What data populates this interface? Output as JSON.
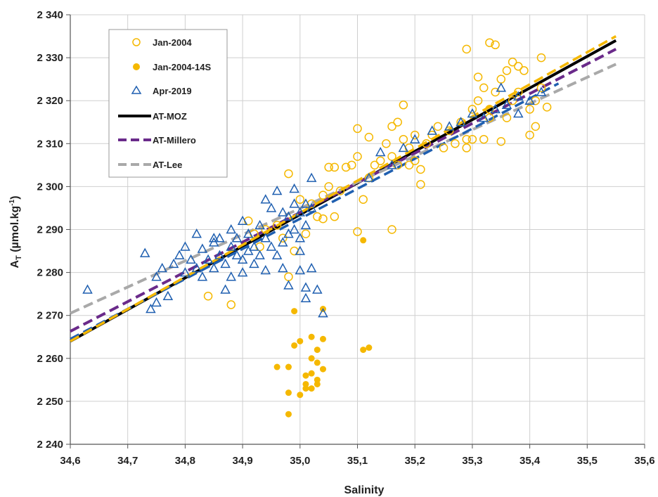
{
  "chart_data": {
    "type": "scatter",
    "xlabel": "Salinity",
    "ylabel": "A",
    "ylabel_sub": "T",
    "ylabel_units": " (µmol.kg",
    "ylabel_sup": "-1",
    "ylabel_close": ")",
    "xlim": [
      34.6,
      35.6
    ],
    "ylim": [
      2240,
      2340
    ],
    "x_ticks": [
      {
        "v": 34.6,
        "label": "34,6"
      },
      {
        "v": 34.7,
        "label": "34,7"
      },
      {
        "v": 34.8,
        "label": "34,8"
      },
      {
        "v": 34.9,
        "label": "34,9"
      },
      {
        "v": 35.0,
        "label": "35,0"
      },
      {
        "v": 35.1,
        "label": "35,1"
      },
      {
        "v": 35.2,
        "label": "35,2"
      },
      {
        "v": 35.3,
        "label": "35,3"
      },
      {
        "v": 35.4,
        "label": "35,4"
      },
      {
        "v": 35.5,
        "label": "35,5"
      },
      {
        "v": 35.6,
        "label": "35,6"
      }
    ],
    "y_ticks": [
      {
        "v": 2240,
        "label": "2 240"
      },
      {
        "v": 2250,
        "label": "2 250"
      },
      {
        "v": 2260,
        "label": "2 260"
      },
      {
        "v": 2270,
        "label": "2 270"
      },
      {
        "v": 2280,
        "label": "2 280"
      },
      {
        "v": 2290,
        "label": "2 290"
      },
      {
        "v": 2300,
        "label": "2 300"
      },
      {
        "v": 2310,
        "label": "2 310"
      },
      {
        "v": 2320,
        "label": "2 320"
      },
      {
        "v": 2330,
        "label": "2 330"
      },
      {
        "v": 2340,
        "label": "2 340"
      }
    ],
    "grid": true,
    "legend_position": "top-left",
    "colors": {
      "jan2004": "#f5b800",
      "jan2004_14s": "#f5b800",
      "apr2019": "#1f5fb0",
      "at_moz": "#000000",
      "at_millero": "#6a2a8a",
      "at_lee": "#a9a9a9",
      "blue_fit": "#1f5fb0",
      "yellow_fit": "#f5b800"
    },
    "series": [
      {
        "name": "Jan-2004",
        "kind": "scatter",
        "marker": "open-circle",
        "points": [
          [
            34.84,
            2274.5
          ],
          [
            34.88,
            2272.5
          ],
          [
            34.91,
            2292
          ],
          [
            34.92,
            2289
          ],
          [
            34.93,
            2286
          ],
          [
            34.94,
            2290
          ],
          [
            34.96,
            2291
          ],
          [
            34.97,
            2288
          ],
          [
            34.98,
            2303
          ],
          [
            34.99,
            2285
          ],
          [
            34.98,
            2279
          ],
          [
            35.0,
            2297
          ],
          [
            35.01,
            2289
          ],
          [
            35.02,
            2296
          ],
          [
            35.03,
            2293
          ],
          [
            35.04,
            2292.5
          ],
          [
            35.04,
            2298
          ],
          [
            35.05,
            2300
          ],
          [
            35.05,
            2304.5
          ],
          [
            35.06,
            2293
          ],
          [
            35.06,
            2304.5
          ],
          [
            35.07,
            2299
          ],
          [
            35.08,
            2304.5
          ],
          [
            35.09,
            2305
          ],
          [
            35.1,
            2307
          ],
          [
            35.1,
            2313.5
          ],
          [
            35.11,
            2297
          ],
          [
            35.12,
            2302
          ],
          [
            35.12,
            2311.5
          ],
          [
            35.13,
            2305
          ],
          [
            35.14,
            2306
          ],
          [
            35.15,
            2310
          ],
          [
            35.16,
            2314
          ],
          [
            35.16,
            2307
          ],
          [
            35.17,
            2305
          ],
          [
            35.17,
            2315
          ],
          [
            35.18,
            2319
          ],
          [
            35.18,
            2311
          ],
          [
            35.19,
            2309
          ],
          [
            35.19,
            2305
          ],
          [
            35.2,
            2312
          ],
          [
            35.2,
            2306
          ],
          [
            35.21,
            2300.5
          ],
          [
            35.21,
            2304
          ],
          [
            35.22,
            2310
          ],
          [
            35.23,
            2312
          ],
          [
            35.24,
            2314
          ],
          [
            35.25,
            2309
          ],
          [
            35.26,
            2313
          ],
          [
            35.27,
            2310
          ],
          [
            35.28,
            2315
          ],
          [
            35.29,
            2309
          ],
          [
            35.29,
            2332
          ],
          [
            35.3,
            2318
          ],
          [
            35.3,
            2311
          ],
          [
            35.31,
            2325.5
          ],
          [
            35.31,
            2320
          ],
          [
            35.32,
            2323
          ],
          [
            35.32,
            2311
          ],
          [
            35.33,
            2333.5
          ],
          [
            35.33,
            2318
          ],
          [
            35.34,
            2333
          ],
          [
            35.34,
            2322
          ],
          [
            35.35,
            2325
          ],
          [
            35.35,
            2310.5
          ],
          [
            35.36,
            2327
          ],
          [
            35.36,
            2316
          ],
          [
            35.37,
            2329
          ],
          [
            35.37,
            2320
          ],
          [
            35.38,
            2328
          ],
          [
            35.38,
            2322
          ],
          [
            35.39,
            2327
          ],
          [
            35.4,
            2312
          ],
          [
            35.4,
            2318
          ],
          [
            35.41,
            2314
          ],
          [
            35.41,
            2320
          ],
          [
            35.42,
            2330
          ],
          [
            35.42,
            2323
          ],
          [
            35.43,
            2318.5
          ],
          [
            35.1,
            2289.5
          ],
          [
            35.16,
            2290
          ],
          [
            35.29,
            2311
          ],
          [
            35.33,
            2316
          ]
        ]
      },
      {
        "name": "Jan-2004-14S",
        "kind": "scatter",
        "marker": "filled-circle",
        "points": [
          [
            34.96,
            2258
          ],
          [
            34.98,
            2258
          ],
          [
            34.98,
            2252
          ],
          [
            34.98,
            2247
          ],
          [
            34.99,
            2263
          ],
          [
            34.99,
            2271
          ],
          [
            35.0,
            2251.5
          ],
          [
            35.0,
            2264
          ],
          [
            35.01,
            2254
          ],
          [
            35.01,
            2256
          ],
          [
            35.01,
            2253
          ],
          [
            35.02,
            2260
          ],
          [
            35.02,
            2265
          ],
          [
            35.02,
            2253
          ],
          [
            35.02,
            2256.5
          ],
          [
            35.03,
            2255
          ],
          [
            35.03,
            2262
          ],
          [
            35.03,
            2259
          ],
          [
            35.03,
            2254
          ],
          [
            35.04,
            2264.5
          ],
          [
            35.04,
            2257.5
          ],
          [
            35.04,
            2271.5
          ],
          [
            35.11,
            2287.5
          ],
          [
            35.11,
            2262
          ],
          [
            35.12,
            2262.5
          ]
        ]
      },
      {
        "name": "Apr-2019",
        "kind": "scatter",
        "marker": "open-triangle",
        "points": [
          [
            34.63,
            2276
          ],
          [
            34.73,
            2284.5
          ],
          [
            34.74,
            2271.5
          ],
          [
            34.75,
            2273
          ],
          [
            34.75,
            2279
          ],
          [
            34.76,
            2281
          ],
          [
            34.77,
            2274.5
          ],
          [
            34.78,
            2282
          ],
          [
            34.79,
            2284
          ],
          [
            34.8,
            2286
          ],
          [
            34.8,
            2280
          ],
          [
            34.81,
            2283
          ],
          [
            34.82,
            2289
          ],
          [
            34.82,
            2281
          ],
          [
            34.83,
            2285.5
          ],
          [
            34.84,
            2283
          ],
          [
            34.85,
            2287
          ],
          [
            34.85,
            2281
          ],
          [
            34.86,
            2288
          ],
          [
            34.86,
            2284
          ],
          [
            34.87,
            2276
          ],
          [
            34.87,
            2282
          ],
          [
            34.88,
            2286
          ],
          [
            34.88,
            2279
          ],
          [
            34.89,
            2284
          ],
          [
            34.89,
            2288
          ],
          [
            34.9,
            2283
          ],
          [
            34.9,
            2280
          ],
          [
            34.91,
            2289
          ],
          [
            34.91,
            2285
          ],
          [
            34.92,
            2286
          ],
          [
            34.92,
            2282
          ],
          [
            34.93,
            2291
          ],
          [
            34.93,
            2284
          ],
          [
            34.94,
            2288
          ],
          [
            34.94,
            2280.5
          ],
          [
            34.95,
            2286
          ],
          [
            34.95,
            2295
          ],
          [
            34.96,
            2284
          ],
          [
            34.96,
            2299
          ],
          [
            34.97,
            2287
          ],
          [
            34.97,
            2281
          ],
          [
            34.98,
            2293
          ],
          [
            34.98,
            2289
          ],
          [
            34.98,
            2277
          ],
          [
            34.99,
            2296
          ],
          [
            34.99,
            2290
          ],
          [
            34.99,
            2299.5
          ],
          [
            35.0,
            2294
          ],
          [
            35.0,
            2288
          ],
          [
            35.0,
            2280.5
          ],
          [
            35.01,
            2296
          ],
          [
            35.01,
            2291
          ],
          [
            35.01,
            2276.5
          ],
          [
            35.01,
            2274
          ],
          [
            35.02,
            2302
          ],
          [
            35.02,
            2295
          ],
          [
            35.02,
            2281
          ],
          [
            35.03,
            2276
          ],
          [
            35.04,
            2270.5
          ],
          [
            35.12,
            2302
          ],
          [
            35.14,
            2308
          ],
          [
            35.16,
            2305
          ],
          [
            35.18,
            2309
          ],
          [
            35.2,
            2311
          ],
          [
            35.23,
            2313
          ],
          [
            35.26,
            2314
          ],
          [
            35.28,
            2315
          ],
          [
            35.3,
            2317
          ],
          [
            35.32,
            2316
          ],
          [
            35.34,
            2318
          ],
          [
            35.35,
            2323
          ],
          [
            35.36,
            2319
          ],
          [
            35.38,
            2321
          ],
          [
            35.38,
            2317
          ],
          [
            35.4,
            2320
          ],
          [
            35.42,
            2322
          ],
          [
            34.83,
            2279
          ],
          [
            34.85,
            2288
          ],
          [
            34.88,
            2290
          ],
          [
            34.9,
            2292
          ],
          [
            34.94,
            2297
          ],
          [
            34.97,
            2294
          ],
          [
            35.0,
            2285
          ]
        ]
      },
      {
        "name": "AT-MOZ",
        "kind": "line",
        "dash": "solid",
        "points": [
          [
            34.6,
            2264
          ],
          [
            35.55,
            2334
          ]
        ]
      },
      {
        "name": "AT-Millero",
        "kind": "line",
        "dash": "dashed",
        "points": [
          [
            34.6,
            2266.3
          ],
          [
            35.55,
            2332
          ]
        ]
      },
      {
        "name": "AT-Lee",
        "kind": "line",
        "dash": "dashed",
        "points": [
          [
            34.6,
            2270.5
          ],
          [
            35.55,
            2328.5
          ]
        ]
      }
    ],
    "extra_lines": [
      {
        "kind": "line",
        "dash": "dashed",
        "color_key": "blue_fit",
        "points": [
          [
            34.6,
            2264.5
          ],
          [
            35.45,
            2324
          ]
        ]
      },
      {
        "kind": "line",
        "dash": "dashed",
        "color_key": "yellow_fit",
        "points": [
          [
            34.6,
            2264
          ],
          [
            35.55,
            2335
          ]
        ]
      }
    ]
  }
}
